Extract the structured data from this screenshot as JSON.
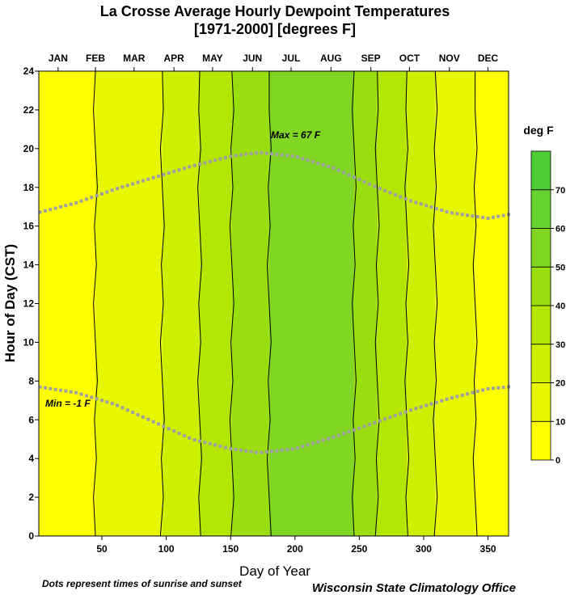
{
  "chart_data": {
    "type": "heatmap",
    "title_line1": "La Crosse  Average Hourly Dewpoint Temperatures",
    "title_line2": "[1971-2000]   [degrees F]",
    "xlabel": "Day of Year",
    "ylabel": "Hour of Day (CST)",
    "xlim": [
      1,
      366
    ],
    "ylim": [
      0,
      24
    ],
    "x_ticks": [
      50,
      100,
      150,
      200,
      250,
      300,
      350
    ],
    "y_ticks": [
      0,
      2,
      4,
      6,
      8,
      10,
      12,
      14,
      16,
      18,
      20,
      22,
      24
    ],
    "months": [
      "JAN",
      "FEB",
      "MAR",
      "APR",
      "MAY",
      "JUN",
      "JUL",
      "AUG",
      "SEP",
      "OCT",
      "NOV",
      "DEC"
    ],
    "month_centers": [
      16,
      45,
      75,
      106,
      136,
      167,
      197,
      228,
      259,
      289,
      320,
      350
    ],
    "bands": [
      {
        "from": 1,
        "to": 45,
        "level": 0
      },
      {
        "from": 45,
        "to": 97,
        "level": 1
      },
      {
        "from": 97,
        "to": 126,
        "level": 2
      },
      {
        "from": 126,
        "to": 151,
        "level": 3
      },
      {
        "from": 151,
        "to": 180,
        "level": 4
      },
      {
        "from": 180,
        "to": 246,
        "level": 5
      },
      {
        "from": 246,
        "to": 264,
        "level": 4
      },
      {
        "from": 264,
        "to": 287,
        "level": 3
      },
      {
        "from": 287,
        "to": 309,
        "level": 2
      },
      {
        "from": 309,
        "to": 340,
        "level": 1
      },
      {
        "from": 340,
        "to": 366,
        "level": 0
      }
    ],
    "legend": {
      "title": "deg F",
      "levels": [
        0,
        10,
        20,
        30,
        40,
        50,
        60,
        70
      ],
      "colors": [
        "#ffff00",
        "#e6f700",
        "#cdef00",
        "#b3e600",
        "#9ade10",
        "#80d623",
        "#66d22f",
        "#4fcb36"
      ]
    },
    "sunset_curve": {
      "x": [
        1,
        30,
        60,
        90,
        120,
        150,
        172,
        200,
        230,
        260,
        290,
        320,
        350,
        366
      ],
      "y": [
        16.7,
        17.2,
        17.9,
        18.5,
        19.1,
        19.6,
        19.8,
        19.6,
        19.0,
        18.1,
        17.3,
        16.7,
        16.4,
        16.6
      ]
    },
    "sunrise_curve": {
      "x": [
        1,
        30,
        60,
        90,
        120,
        150,
        172,
        200,
        230,
        260,
        290,
        320,
        350,
        366
      ],
      "y": [
        7.7,
        7.4,
        6.8,
        5.9,
        5.0,
        4.5,
        4.3,
        4.5,
        5.1,
        5.8,
        6.5,
        7.1,
        7.6,
        7.7
      ]
    },
    "annotations": {
      "max_label": "Max = 67 F",
      "min_label": "Min = -1 F",
      "footnote": "Dots represent times of sunrise and sunset",
      "credit": "Wisconsin State Climatology Office"
    }
  }
}
